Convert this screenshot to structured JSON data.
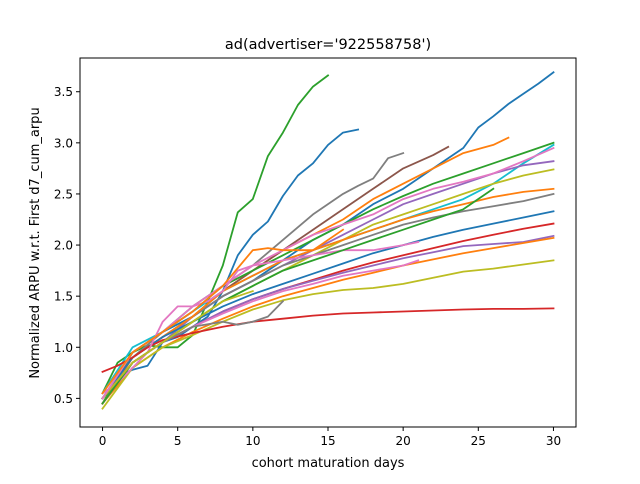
{
  "chart_data": {
    "type": "line",
    "title": "ad(advertiser='922558758')",
    "xlabel": "cohort maturation days",
    "ylabel": "Normalized ARPU w.r.t. First d7_cum_arpu",
    "xlim": [
      -1.5,
      31.5
    ],
    "ylim": [
      0.22,
      3.83
    ],
    "xticks": [
      0,
      5,
      10,
      15,
      20,
      25,
      30
    ],
    "yticks": [
      0.5,
      1.0,
      1.5,
      2.0,
      2.5,
      3.0,
      3.5
    ],
    "xtick_labels": [
      "0",
      "5",
      "10",
      "15",
      "20",
      "25",
      "30"
    ],
    "ytick_labels": [
      "0.5",
      "1.0",
      "1.5",
      "2.0",
      "2.5",
      "3.0",
      "3.5"
    ],
    "grid": false,
    "legend": "none",
    "colors": [
      "#1f77b4",
      "#ff7f0e",
      "#2ca02c",
      "#d62728",
      "#9467bd",
      "#8c564b",
      "#e377c2",
      "#7f7f7f",
      "#bcbd22",
      "#17becf"
    ],
    "series": [
      {
        "color": "#2ca02c",
        "x": [
          0,
          1,
          2,
          3,
          4,
          5,
          6,
          7,
          8,
          9,
          10,
          11,
          12,
          13,
          14,
          15
        ],
        "y": [
          0.55,
          0.85,
          0.95,
          1.02,
          1.0,
          1.0,
          1.12,
          1.45,
          1.8,
          2.32,
          2.45,
          2.87,
          3.1,
          3.37,
          3.55,
          3.66
        ]
      },
      {
        "color": "#1f77b4",
        "x": [
          0,
          1,
          2,
          3,
          4,
          5,
          6,
          7,
          8,
          9,
          10,
          11,
          12,
          13,
          14,
          15,
          16,
          17
        ],
        "y": [
          0.5,
          0.72,
          0.78,
          0.82,
          1.05,
          1.1,
          1.2,
          1.3,
          1.55,
          1.9,
          2.1,
          2.23,
          2.48,
          2.68,
          2.8,
          2.98,
          3.1,
          3.13
        ]
      },
      {
        "color": "#1f77b4",
        "x": [
          0,
          2,
          4,
          6,
          8,
          10,
          12,
          14,
          16,
          18,
          20,
          22,
          24,
          25,
          26,
          27,
          28,
          29,
          30
        ],
        "y": [
          0.5,
          0.95,
          1.15,
          1.3,
          1.5,
          1.65,
          1.85,
          2.05,
          2.2,
          2.4,
          2.55,
          2.75,
          2.95,
          3.15,
          3.26,
          3.38,
          3.48,
          3.58,
          3.69
        ]
      },
      {
        "color": "#ff7f0e",
        "x": [
          0,
          2,
          4,
          6,
          8,
          10,
          12,
          14,
          16,
          18,
          20,
          22,
          24,
          26,
          27
        ],
        "y": [
          0.45,
          0.9,
          1.1,
          1.3,
          1.55,
          1.75,
          1.95,
          2.1,
          2.25,
          2.45,
          2.6,
          2.75,
          2.9,
          2.98,
          3.05
        ]
      },
      {
        "color": "#7f7f7f",
        "x": [
          0,
          2,
          4,
          6,
          8,
          10,
          12,
          14,
          16,
          17,
          18,
          19,
          20
        ],
        "y": [
          0.5,
          0.9,
          1.15,
          1.35,
          1.6,
          1.8,
          2.05,
          2.3,
          2.5,
          2.58,
          2.65,
          2.85,
          2.9
        ]
      },
      {
        "color": "#8c564b",
        "x": [
          0,
          2,
          4,
          6,
          8,
          10,
          12,
          14,
          16,
          18,
          20,
          22,
          23
        ],
        "y": [
          0.5,
          0.9,
          1.1,
          1.3,
          1.55,
          1.75,
          1.95,
          2.15,
          2.35,
          2.55,
          2.75,
          2.88,
          2.96
        ]
      },
      {
        "color": "#2ca02c",
        "x": [
          0,
          2,
          4,
          6,
          8,
          10,
          12,
          14,
          16,
          18,
          20,
          22,
          24,
          26,
          28,
          30
        ],
        "y": [
          0.45,
          0.95,
          1.15,
          1.4,
          1.6,
          1.75,
          1.9,
          2.05,
          2.2,
          2.35,
          2.48,
          2.6,
          2.7,
          2.8,
          2.9,
          3.0
        ]
      },
      {
        "color": "#17becf",
        "x": [
          0,
          2,
          4,
          6,
          8,
          10,
          12,
          14,
          16,
          18,
          20,
          22,
          24,
          26,
          28,
          30
        ],
        "y": [
          0.55,
          1.0,
          1.15,
          1.35,
          1.55,
          1.7,
          1.85,
          1.95,
          2.05,
          2.15,
          2.25,
          2.35,
          2.45,
          2.6,
          2.8,
          2.98
        ]
      },
      {
        "color": "#9467bd",
        "x": [
          0,
          2,
          4,
          6,
          8,
          10,
          12,
          14,
          16,
          18,
          20,
          22,
          24,
          26,
          28,
          30
        ],
        "y": [
          0.45,
          0.85,
          1.05,
          1.3,
          1.5,
          1.65,
          1.8,
          1.95,
          2.1,
          2.25,
          2.4,
          2.5,
          2.6,
          2.7,
          2.78,
          2.82
        ]
      },
      {
        "color": "#bcbd22",
        "x": [
          0,
          2,
          4,
          6,
          8,
          10,
          12,
          14,
          16,
          18,
          20,
          22,
          24,
          26,
          28,
          30
        ],
        "y": [
          0.45,
          0.85,
          1.05,
          1.25,
          1.45,
          1.6,
          1.75,
          1.9,
          2.05,
          2.2,
          2.3,
          2.4,
          2.5,
          2.6,
          2.68,
          2.74
        ]
      },
      {
        "color": "#7f7f7f",
        "x": [
          0,
          2,
          4,
          6,
          8,
          10,
          12,
          14,
          16,
          18,
          20,
          22,
          24,
          26,
          28,
          30
        ],
        "y": [
          0.5,
          0.9,
          1.1,
          1.3,
          1.5,
          1.65,
          1.8,
          1.9,
          2.0,
          2.1,
          2.2,
          2.27,
          2.33,
          2.38,
          2.43,
          2.5
        ]
      },
      {
        "color": "#ff7f0e",
        "x": [
          0,
          2,
          4,
          6,
          8,
          10,
          12,
          14,
          16,
          18,
          20,
          22,
          24,
          26,
          28,
          30
        ],
        "y": [
          0.5,
          0.9,
          1.1,
          1.3,
          1.55,
          1.7,
          1.85,
          1.95,
          2.05,
          2.15,
          2.25,
          2.33,
          2.4,
          2.47,
          2.52,
          2.55
        ]
      },
      {
        "color": "#1f77b4",
        "x": [
          0,
          2,
          4,
          6,
          8,
          10,
          12,
          14,
          16,
          18,
          20,
          22,
          24,
          26,
          28,
          30
        ],
        "y": [
          0.5,
          0.9,
          1.1,
          1.25,
          1.4,
          1.52,
          1.62,
          1.72,
          1.82,
          1.92,
          2.0,
          2.08,
          2.15,
          2.21,
          2.27,
          2.33
        ]
      },
      {
        "color": "#d62728",
        "x": [
          0,
          2,
          4,
          6,
          8,
          10,
          12,
          14,
          16,
          18,
          20,
          22,
          24,
          26,
          28,
          30
        ],
        "y": [
          0.45,
          0.85,
          1.05,
          1.2,
          1.35,
          1.47,
          1.57,
          1.66,
          1.75,
          1.83,
          1.9,
          1.97,
          2.04,
          2.1,
          2.16,
          2.21
        ]
      },
      {
        "color": "#9467bd",
        "x": [
          0,
          2,
          4,
          6,
          8,
          10,
          12,
          14,
          16,
          18,
          20,
          22,
          24,
          26,
          28,
          30
        ],
        "y": [
          0.5,
          0.85,
          1.05,
          1.2,
          1.35,
          1.47,
          1.57,
          1.65,
          1.73,
          1.8,
          1.87,
          1.93,
          1.99,
          2.01,
          2.03,
          2.09
        ]
      },
      {
        "color": "#ff7f0e",
        "x": [
          0,
          2,
          4,
          6,
          8,
          10,
          12,
          14,
          16,
          18,
          20,
          22,
          24,
          26,
          28,
          30
        ],
        "y": [
          0.45,
          0.8,
          1.0,
          1.15,
          1.28,
          1.4,
          1.5,
          1.58,
          1.66,
          1.73,
          1.8,
          1.86,
          1.92,
          1.97,
          2.02,
          2.07
        ]
      },
      {
        "color": "#bcbd22",
        "x": [
          0,
          2,
          4,
          6,
          8,
          10,
          12,
          14,
          16,
          18,
          20,
          22,
          24,
          26,
          28,
          30
        ],
        "y": [
          0.4,
          0.8,
          1.0,
          1.12,
          1.25,
          1.37,
          1.46,
          1.52,
          1.56,
          1.58,
          1.62,
          1.68,
          1.74,
          1.77,
          1.81,
          1.85
        ]
      },
      {
        "color": "#d62728",
        "x": [
          0,
          1,
          2,
          3,
          4,
          6,
          8,
          10,
          12,
          14,
          16,
          18,
          20,
          22,
          24,
          26,
          28,
          30
        ],
        "y": [
          0.76,
          0.82,
          0.9,
          1.0,
          1.07,
          1.14,
          1.2,
          1.25,
          1.28,
          1.31,
          1.33,
          1.34,
          1.35,
          1.36,
          1.37,
          1.375,
          1.375,
          1.38
        ]
      },
      {
        "color": "#e377c2",
        "x": [
          0,
          1,
          2,
          3,
          4,
          5,
          6,
          7,
          8,
          9,
          10,
          12,
          14,
          16,
          18,
          20,
          21
        ],
        "y": [
          0.55,
          0.65,
          0.8,
          0.95,
          1.25,
          1.4,
          1.4,
          1.45,
          1.55,
          1.75,
          1.8,
          1.85,
          1.9,
          1.95,
          1.95,
          2.0,
          2.03
        ]
      },
      {
        "color": "#e377c2",
        "x": [
          0,
          2,
          4,
          6,
          8,
          10,
          12,
          14,
          16,
          18,
          20,
          21
        ],
        "y": [
          0.45,
          0.85,
          1.05,
          1.2,
          1.33,
          1.45,
          1.55,
          1.62,
          1.7,
          1.75,
          1.8,
          1.85
        ]
      },
      {
        "color": "#2ca02c",
        "x": [
          0,
          2,
          4,
          6,
          8,
          10,
          12,
          14,
          16,
          18,
          20,
          22,
          24,
          26
        ],
        "y": [
          0.45,
          0.85,
          1.05,
          1.25,
          1.45,
          1.6,
          1.75,
          1.85,
          1.95,
          2.05,
          2.15,
          2.25,
          2.35,
          2.55
        ]
      },
      {
        "color": "#7f7f7f",
        "x": [
          0,
          2,
          4,
          6,
          8,
          9,
          10,
          11,
          12
        ],
        "y": [
          0.5,
          0.85,
          1.05,
          1.2,
          1.25,
          1.22,
          1.25,
          1.3,
          1.45
        ]
      },
      {
        "color": "#bcbd22",
        "x": [
          0,
          2,
          4,
          6,
          8,
          9,
          10
        ],
        "y": [
          0.5,
          0.85,
          1.05,
          1.25,
          1.45,
          1.5,
          1.55
        ]
      },
      {
        "color": "#e377c2",
        "x": [
          0,
          2,
          4,
          6,
          8,
          10,
          12,
          14,
          16,
          18,
          20,
          22,
          24,
          26,
          28,
          30
        ],
        "y": [
          0.5,
          0.95,
          1.15,
          1.4,
          1.6,
          1.8,
          1.95,
          2.1,
          2.2,
          2.3,
          2.45,
          2.55,
          2.62,
          2.7,
          2.82,
          2.95
        ]
      },
      {
        "color": "#ff7f0e",
        "x": [
          0,
          2,
          4,
          6,
          8,
          10,
          11,
          12,
          14,
          16
        ],
        "y": [
          0.55,
          0.95,
          1.15,
          1.35,
          1.6,
          1.95,
          1.97,
          1.95,
          1.95,
          2.15
        ]
      }
    ]
  }
}
